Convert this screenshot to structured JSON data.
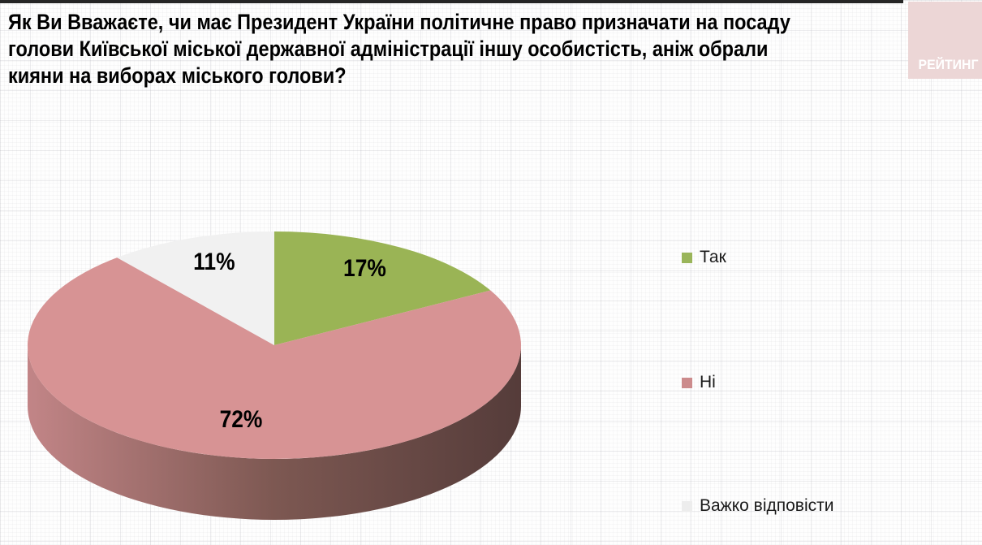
{
  "header": {
    "title_lines": [
      "Як Ви Вважаєте, чи має Президент України політичне право призначати на посаду",
      "голови Київської міської державної адміністрації іншу особистість, аніж обрали",
      "кияни на виборах міського голови?"
    ],
    "logo_text": "РЕЙТИНГ",
    "logo_bg": "#ecd6d6",
    "logo_text_color": "#ffffff"
  },
  "chart_data": {
    "type": "pie",
    "is_3d": true,
    "start_angle_deg": 0,
    "direction": "clockwise",
    "title": "Як Ви Вважаєте, чи має Президент України політичне право призначати на посаду голови Київської міської державної адміністрації іншу особистість, аніж обрали кияни на виборах міського голови?",
    "categories": [
      "Так",
      "Ні",
      "Важко відповісти"
    ],
    "values": [
      17,
      72,
      11
    ],
    "unit": "%",
    "labels": [
      "17%",
      "72%",
      "11%"
    ],
    "colors": [
      "#9ab455",
      "#d79394",
      "#f1f1f1"
    ],
    "side_gradient": [
      "#c28587",
      "#7d5852",
      "#553c3a"
    ],
    "label_color": "#000000",
    "legend_position": "right",
    "legend": [
      {
        "label": "Так",
        "color": "#9ab55a"
      },
      {
        "label": "Ні",
        "color": "#cc8b8c"
      },
      {
        "label": "Важко відповісти",
        "color": "#ededed"
      }
    ]
  }
}
